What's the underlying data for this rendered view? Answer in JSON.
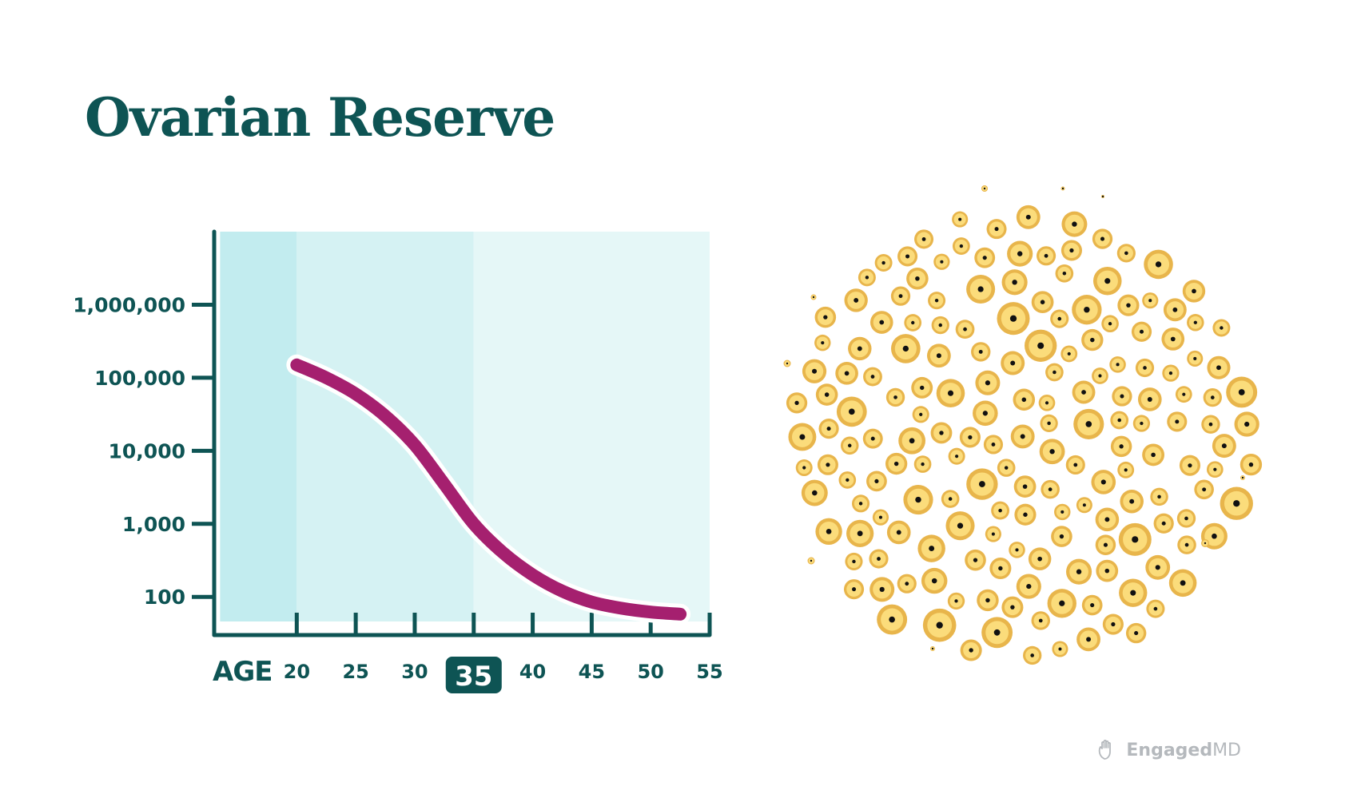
{
  "title": "Ovarian Reserve",
  "brand": {
    "bold": "Engaged",
    "light": "MD"
  },
  "colors": {
    "text": "#0e5454",
    "axis": "#0e5454",
    "curve": "#a5206f",
    "band_dark": "#c2ecef",
    "band_mid": "#d5f2f3",
    "band_light": "#e5f7f7",
    "follicle_outer": "#e8b54b",
    "follicle_inner": "#fbdc7b",
    "follicle_nucleus": "#111111"
  },
  "chart_data": {
    "type": "line",
    "title": "Ovarian Reserve",
    "xlabel": "AGE",
    "ylabel": "",
    "yscale": "log",
    "x_ticks": [
      20,
      25,
      30,
      35,
      40,
      45,
      50,
      55
    ],
    "x_tick_labels": [
      "20",
      "25",
      "30",
      "35",
      "40",
      "45",
      "50",
      "55"
    ],
    "highlighted_x_tick": "35",
    "y_ticks": [
      100,
      1000,
      10000,
      100000,
      1000000
    ],
    "y_tick_labels": [
      "100",
      "1,000",
      "10,000",
      "100,000",
      "1,000,000"
    ],
    "xlim": [
      13,
      55
    ],
    "ylim": [
      30,
      10000000
    ],
    "shaded_bands": [
      {
        "from": 13.5,
        "to": 20,
        "shade": "band_dark"
      },
      {
        "from": 20,
        "to": 35,
        "shade": "band_mid"
      },
      {
        "from": 35,
        "to": 55,
        "shade": "band_light"
      }
    ],
    "series": [
      {
        "x": [
          20,
          22.5,
          25,
          27.5,
          30,
          32.5,
          35,
          37.5,
          40,
          42.5,
          45,
          47.5,
          50,
          52.5
        ],
        "y": [
          150000,
          100000,
          60000,
          30000,
          12000,
          3500,
          1000,
          400,
          200,
          120,
          85,
          70,
          62,
          58
        ]
      }
    ]
  }
}
